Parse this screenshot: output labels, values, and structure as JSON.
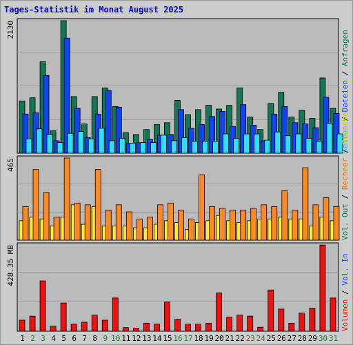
{
  "title": "Tages-Statistik im Monat August 2025",
  "chart_data": [
    {
      "type": "bar",
      "id": "requests",
      "ymax_label": "2130",
      "ylim": [
        0,
        2130
      ],
      "categories": [
        "1",
        "2",
        "3",
        "4",
        "5",
        "6",
        "7",
        "8",
        "9",
        "10",
        "11",
        "12",
        "13",
        "14",
        "15",
        "16",
        "17",
        "18",
        "19",
        "20",
        "21",
        "22",
        "23",
        "24",
        "25",
        "26",
        "27",
        "28",
        "29",
        "30",
        "31"
      ],
      "weekend_days": [
        "2",
        "3",
        "9",
        "10",
        "16",
        "17",
        "23",
        "24",
        "30",
        "31"
      ],
      "legend": [
        "Anfragen",
        "Dateien",
        "Seiten"
      ],
      "series": [
        {
          "name": "Anfragen",
          "color": "#117755",
          "values": [
            840,
            890,
            1470,
            360,
            2130,
            910,
            470,
            910,
            1050,
            750,
            330,
            300,
            380,
            460,
            490,
            850,
            620,
            700,
            770,
            710,
            770,
            1050,
            580,
            380,
            800,
            980,
            580,
            690,
            560,
            1210,
            720
          ]
        },
        {
          "name": "Dateien",
          "color": "#1144ee",
          "values": [
            630,
            650,
            1250,
            200,
            1850,
            720,
            250,
            630,
            1010,
            740,
            160,
            170,
            220,
            290,
            300,
            700,
            400,
            460,
            590,
            670,
            430,
            780,
            450,
            200,
            630,
            750,
            490,
            470,
            410,
            900,
            640
          ]
        },
        {
          "name": "Seiten",
          "color": "#33ddff",
          "values": [
            230,
            390,
            300,
            170,
            320,
            350,
            230,
            400,
            200,
            240,
            160,
            170,
            170,
            290,
            200,
            250,
            190,
            190,
            190,
            310,
            240,
            310,
            310,
            210,
            340,
            280,
            310,
            240,
            190,
            480,
            310
          ]
        }
      ]
    },
    {
      "type": "bar",
      "id": "visits",
      "ymax_label": "465",
      "ylim": [
        0,
        465
      ],
      "categories": [
        "1",
        "2",
        "3",
        "4",
        "5",
        "6",
        "7",
        "8",
        "9",
        "10",
        "11",
        "12",
        "13",
        "14",
        "15",
        "16",
        "17",
        "18",
        "19",
        "20",
        "21",
        "22",
        "23",
        "24",
        "25",
        "26",
        "27",
        "28",
        "29",
        "30",
        "31"
      ],
      "legend": [
        "Besuche",
        "Rechner"
      ],
      "series": [
        {
          "name": "Besuche",
          "color": "#ffee22",
          "values": [
            110,
            130,
            120,
            80,
            130,
            200,
            90,
            190,
            80,
            80,
            80,
            70,
            70,
            90,
            110,
            100,
            60,
            100,
            110,
            140,
            110,
            100,
            110,
            120,
            120,
            130,
            120,
            120,
            80,
            130,
            110
          ]
        },
        {
          "name": "Rechner",
          "color": "#ff8822",
          "values": [
            190,
            400,
            270,
            130,
            465,
            210,
            200,
            400,
            170,
            200,
            160,
            120,
            130,
            200,
            210,
            170,
            120,
            370,
            190,
            180,
            170,
            170,
            180,
            200,
            190,
            280,
            170,
            410,
            200,
            240,
            190
          ]
        }
      ]
    },
    {
      "type": "bar",
      "id": "volume",
      "ymax_label": "428.35 MB",
      "ylim": [
        0,
        428.35
      ],
      "categories": [
        "1",
        "2",
        "3",
        "4",
        "5",
        "6",
        "7",
        "8",
        "9",
        "10",
        "11",
        "12",
        "13",
        "14",
        "15",
        "16",
        "17",
        "18",
        "19",
        "20",
        "21",
        "22",
        "23",
        "24",
        "25",
        "26",
        "27",
        "28",
        "29",
        "30",
        "31"
      ],
      "legend": [
        "Volumen",
        "Vol. In",
        "Vol. Out"
      ],
      "series": [
        {
          "name": "Volumen",
          "color": "#ee1111",
          "values": [
            55,
            75,
            250,
            25,
            140,
            35,
            45,
            80,
            55,
            165,
            18,
            15,
            40,
            35,
            145,
            60,
            35,
            35,
            40,
            190,
            70,
            80,
            75,
            20,
            205,
            110,
            40,
            90,
            115,
            428,
            165
          ]
        }
      ]
    }
  ]
}
